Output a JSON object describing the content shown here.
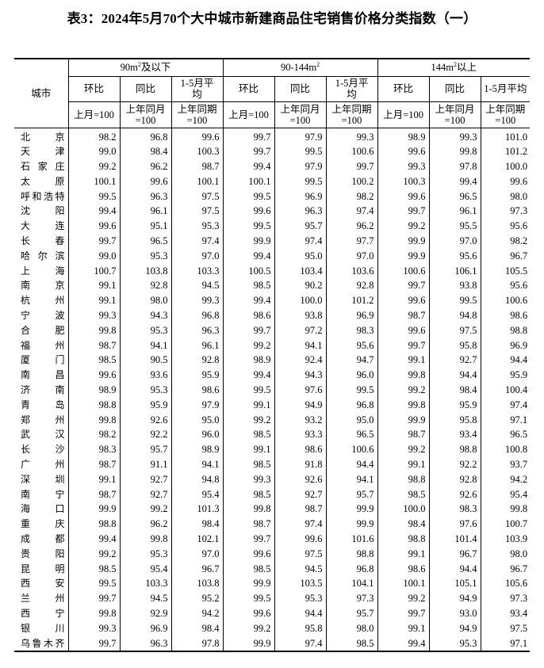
{
  "title": "表3：2024年5月70个大中城市新建商品住宅销售价格分类指数（一）",
  "header": {
    "city": "城市",
    "groups": [
      {
        "pre": "90m",
        "sup": "2",
        "post": "及以下"
      },
      {
        "pre": "90-144m",
        "sup": "2",
        "post": ""
      },
      {
        "pre": "144m",
        "sup": "2",
        "post": "以上"
      }
    ],
    "subcols": [
      [
        "环比",
        "同比",
        "1-5月平均"
      ],
      [
        "环比",
        "同比",
        "1-5月平均"
      ],
      [
        "环比",
        "同比",
        "1-5月平均"
      ]
    ],
    "bases": [
      [
        "上月=100",
        "上年同月=100",
        "上年同期=100"
      ],
      [
        "上月=100",
        "上年同月=100",
        "上年同期=100"
      ],
      [
        "上月=100",
        "上年同月=100",
        "上年同期=100"
      ]
    ]
  },
  "rows": [
    {
      "city": "北京",
      "values": [
        "98.2",
        "96.8",
        "99.6",
        "99.7",
        "97.9",
        "99.3",
        "98.9",
        "99.3",
        "101.0"
      ]
    },
    {
      "city": "天津",
      "values": [
        "99.0",
        "98.4",
        "100.3",
        "99.7",
        "99.5",
        "100.6",
        "99.6",
        "99.8",
        "101.2"
      ]
    },
    {
      "city": "石家庄",
      "values": [
        "99.2",
        "96.2",
        "98.7",
        "99.4",
        "97.9",
        "99.7",
        "99.3",
        "97.8",
        "100.0"
      ]
    },
    {
      "city": "太原",
      "values": [
        "100.1",
        "99.6",
        "100.1",
        "100.1",
        "99.5",
        "100.2",
        "100.3",
        "99.4",
        "99.6"
      ]
    },
    {
      "city": "呼和浩特",
      "values": [
        "99.5",
        "96.3",
        "97.5",
        "99.5",
        "96.9",
        "98.2",
        "99.6",
        "96.5",
        "98.0"
      ]
    },
    {
      "city": "沈阳",
      "values": [
        "99.4",
        "96.1",
        "97.5",
        "99.6",
        "96.3",
        "97.4",
        "99.7",
        "96.1",
        "97.3"
      ]
    },
    {
      "city": "大连",
      "values": [
        "99.6",
        "95.1",
        "95.3",
        "99.5",
        "95.7",
        "96.2",
        "99.2",
        "95.5",
        "95.6"
      ]
    },
    {
      "city": "长春",
      "values": [
        "99.7",
        "96.5",
        "97.4",
        "99.9",
        "97.4",
        "97.7",
        "99.9",
        "97.0",
        "98.2"
      ]
    },
    {
      "city": "哈尔滨",
      "values": [
        "99.0",
        "95.3",
        "97.0",
        "99.4",
        "95.0",
        "97.0",
        "99.9",
        "95.6",
        "96.7"
      ]
    },
    {
      "city": "上海",
      "values": [
        "100.7",
        "103.8",
        "103.3",
        "100.5",
        "103.4",
        "103.6",
        "100.6",
        "106.1",
        "105.5"
      ]
    },
    {
      "city": "南京",
      "values": [
        "99.1",
        "92.8",
        "94.5",
        "98.5",
        "90.2",
        "92.8",
        "99.7",
        "93.8",
        "95.6"
      ]
    },
    {
      "city": "杭州",
      "values": [
        "99.1",
        "98.0",
        "99.3",
        "99.4",
        "100.0",
        "101.2",
        "99.6",
        "99.5",
        "100.6"
      ]
    },
    {
      "city": "宁波",
      "values": [
        "99.3",
        "94.3",
        "96.8",
        "98.6",
        "93.8",
        "96.9",
        "98.7",
        "94.8",
        "98.6"
      ]
    },
    {
      "city": "合肥",
      "values": [
        "99.8",
        "95.3",
        "96.3",
        "99.7",
        "97.2",
        "98.3",
        "99.6",
        "97.5",
        "98.8"
      ]
    },
    {
      "city": "福州",
      "values": [
        "98.7",
        "94.1",
        "96.1",
        "99.2",
        "94.1",
        "95.6",
        "99.7",
        "95.8",
        "96.9"
      ]
    },
    {
      "city": "厦门",
      "values": [
        "98.5",
        "90.5",
        "92.8",
        "98.9",
        "92.4",
        "94.7",
        "99.1",
        "92.7",
        "94.4"
      ]
    },
    {
      "city": "南昌",
      "values": [
        "99.6",
        "93.6",
        "95.9",
        "99.4",
        "94.3",
        "96.0",
        "99.8",
        "94.4",
        "95.9"
      ]
    },
    {
      "city": "济南",
      "values": [
        "98.9",
        "95.3",
        "98.6",
        "99.5",
        "97.6",
        "99.5",
        "99.2",
        "98.4",
        "100.4"
      ]
    },
    {
      "city": "青岛",
      "values": [
        "98.8",
        "95.9",
        "97.9",
        "99.1",
        "94.9",
        "96.8",
        "99.8",
        "95.9",
        "97.4"
      ]
    },
    {
      "city": "郑州",
      "values": [
        "99.8",
        "92.6",
        "95.0",
        "99.2",
        "93.2",
        "95.0",
        "99.9",
        "95.8",
        "97.1"
      ]
    },
    {
      "city": "武汉",
      "values": [
        "98.2",
        "92.2",
        "96.0",
        "98.5",
        "93.3",
        "96.5",
        "98.7",
        "93.4",
        "96.5"
      ]
    },
    {
      "city": "长沙",
      "values": [
        "98.3",
        "95.7",
        "98.9",
        "99.1",
        "98.6",
        "100.6",
        "99.2",
        "98.8",
        "100.8"
      ]
    },
    {
      "city": "广州",
      "values": [
        "98.7",
        "91.1",
        "94.1",
        "98.5",
        "91.8",
        "94.4",
        "99.1",
        "92.2",
        "93.7"
      ]
    },
    {
      "city": "深圳",
      "values": [
        "99.1",
        "92.7",
        "94.8",
        "99.3",
        "92.6",
        "94.1",
        "98.8",
        "92.8",
        "94.2"
      ]
    },
    {
      "city": "南宁",
      "values": [
        "98.7",
        "92.7",
        "95.4",
        "98.5",
        "92.7",
        "95.7",
        "98.5",
        "92.6",
        "95.4"
      ]
    },
    {
      "city": "海口",
      "values": [
        "99.9",
        "99.2",
        "101.3",
        "99.8",
        "98.7",
        "99.9",
        "100.0",
        "98.3",
        "99.8"
      ]
    },
    {
      "city": "重庆",
      "values": [
        "98.8",
        "96.2",
        "98.4",
        "98.7",
        "97.4",
        "99.9",
        "98.4",
        "97.6",
        "100.7"
      ]
    },
    {
      "city": "成都",
      "values": [
        "99.4",
        "99.8",
        "102.1",
        "99.7",
        "99.6",
        "101.6",
        "98.8",
        "101.4",
        "103.9"
      ]
    },
    {
      "city": "贵阳",
      "values": [
        "99.2",
        "95.3",
        "97.0",
        "99.6",
        "97.5",
        "98.8",
        "99.1",
        "96.7",
        "98.0"
      ]
    },
    {
      "city": "昆明",
      "values": [
        "98.5",
        "95.4",
        "96.7",
        "98.5",
        "94.5",
        "96.8",
        "98.6",
        "94.4",
        "96.7"
      ]
    },
    {
      "city": "西安",
      "values": [
        "99.5",
        "103.3",
        "103.8",
        "99.9",
        "103.5",
        "104.1",
        "100.1",
        "105.1",
        "105.6"
      ]
    },
    {
      "city": "兰州",
      "values": [
        "99.7",
        "94.5",
        "95.2",
        "99.5",
        "95.3",
        "97.3",
        "99.2",
        "94.9",
        "97.3"
      ]
    },
    {
      "city": "西宁",
      "values": [
        "99.8",
        "92.9",
        "94.2",
        "99.6",
        "94.4",
        "95.7",
        "99.7",
        "93.0",
        "93.4"
      ]
    },
    {
      "city": "银川",
      "values": [
        "99.3",
        "96.9",
        "98.4",
        "99.2",
        "95.8",
        "98.0",
        "99.1",
        "94.9",
        "97.5"
      ]
    },
    {
      "city": "乌鲁木齐",
      "values": [
        "99.7",
        "96.3",
        "97.8",
        "99.9",
        "97.4",
        "98.5",
        "99.4",
        "95.3",
        "97.1"
      ]
    }
  ]
}
